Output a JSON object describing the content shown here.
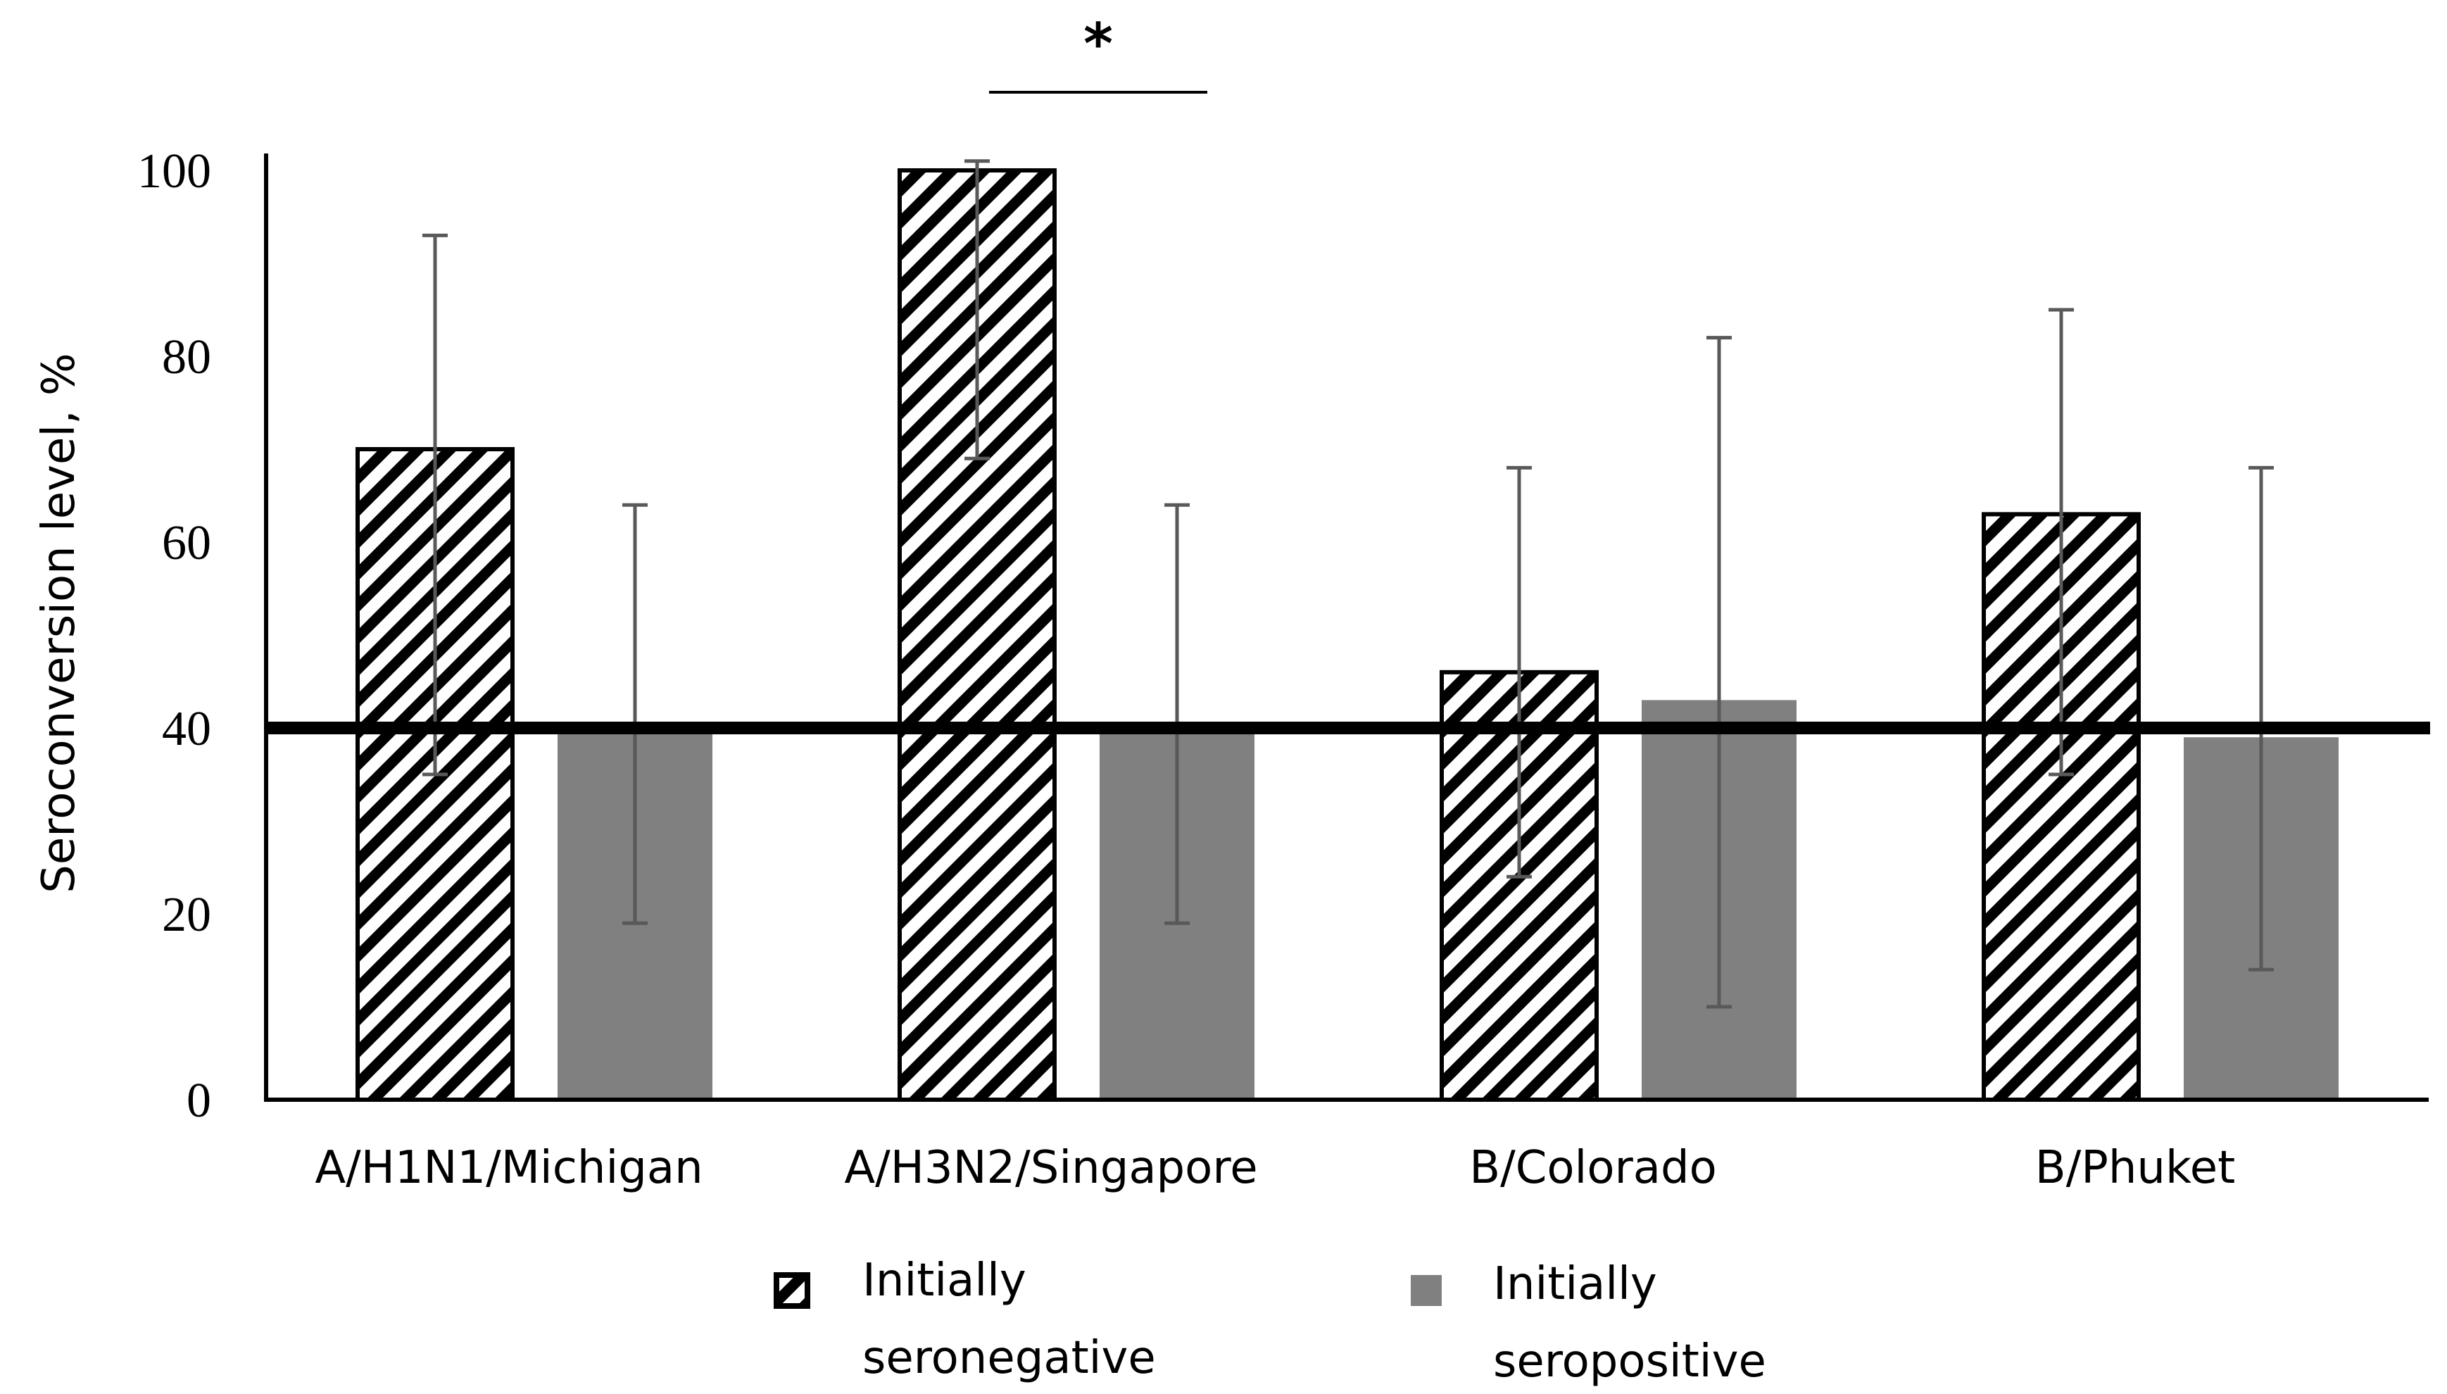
{
  "chart_data": {
    "type": "bar",
    "title": "",
    "xlabel": "",
    "ylabel": "Seroconversion level, %",
    "ylim": [
      0,
      100
    ],
    "yticks": [
      "0",
      "20",
      "40",
      "60",
      "80",
      "100"
    ],
    "categories": [
      "A/H1N1/Michigan",
      "A/H3N2/Singapore",
      "B/Colorado",
      "B/Phuket"
    ],
    "series": [
      {
        "name": "Initially seronegative",
        "legend_lines": [
          "Initially",
          "seronegative"
        ],
        "pattern": "diagonal-hatch",
        "values": [
          70,
          100,
          46,
          63
        ],
        "err_low": [
          35,
          69,
          24,
          35
        ],
        "err_high": [
          93,
          101,
          68,
          85
        ]
      },
      {
        "name": "Initially seropositive",
        "legend_lines": [
          "Initially",
          "seropositive"
        ],
        "pattern": "solid",
        "color": "#808080",
        "values": [
          40,
          40,
          43,
          39
        ],
        "err_low": [
          19,
          19,
          10,
          14
        ],
        "err_high": [
          64,
          64,
          82,
          68
        ]
      }
    ],
    "reference_line": {
      "y": 40
    },
    "significance": {
      "label": "*",
      "category": "A/H3N2/Singapore"
    },
    "legend_position": "bottom",
    "grid": false,
    "colors": {
      "bar_solid": "#808080",
      "error_bar": "#595959",
      "hatch_stroke": "#000000",
      "background": "#ffffff"
    }
  }
}
